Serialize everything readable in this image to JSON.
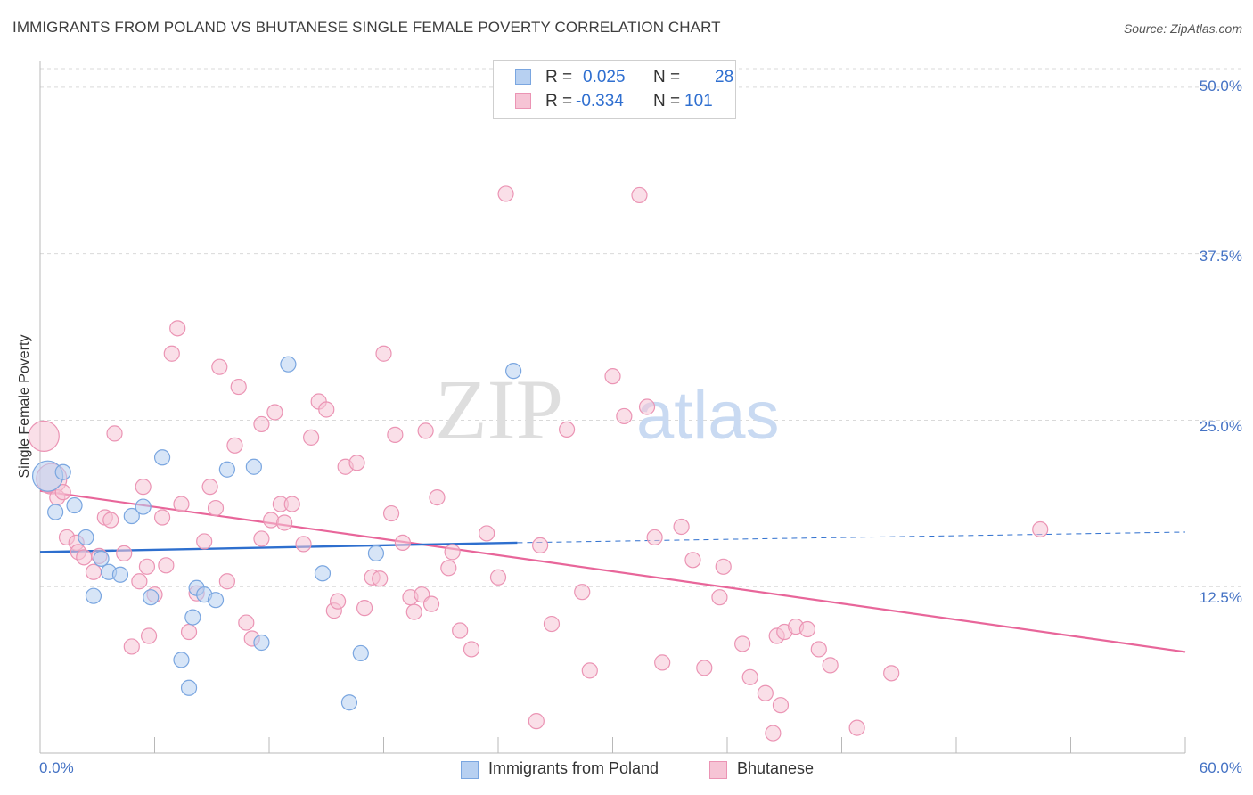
{
  "title": "IMMIGRANTS FROM POLAND VS BHUTANESE SINGLE FEMALE POVERTY CORRELATION CHART",
  "source": "Source: ZipAtlas.com",
  "watermark": {
    "zip": "ZIP",
    "atlas": "atlas"
  },
  "colors": {
    "blue_fill": "#b7d0f1",
    "blue_stroke": "#7aa6e0",
    "blue_line": "#2e6fce",
    "pink_fill": "#f6c4d5",
    "pink_stroke": "#eb94b4",
    "pink_line": "#e8669a",
    "axis_text": "#4472c4",
    "grid": "#d9d9d9"
  },
  "legend": {
    "rows": [
      {
        "r_label": "R =",
        "r_value": "0.025",
        "n_label": "N =",
        "n_value": "28"
      },
      {
        "r_label": "R =",
        "r_value": "-0.334",
        "n_label": "N =",
        "n_value": "101"
      }
    ]
  },
  "bottom_legend": [
    "Immigrants from Poland",
    "Bhutanese"
  ],
  "chart_data": {
    "type": "scatter",
    "title": "IMMIGRANTS FROM POLAND VS BHUTANESE SINGLE FEMALE POVERTY CORRELATION CHART",
    "xlabel": "",
    "ylabel": "Single Female Poverty",
    "xlim": [
      0,
      60
    ],
    "ylim": [
      0,
      52
    ],
    "x_tick_labels": [
      "0.0%",
      "60.0%"
    ],
    "y_ticks": [
      12.5,
      25.0,
      37.5,
      50.0
    ],
    "y_tick_labels": [
      "12.5%",
      "25.0%",
      "37.5%",
      "50.0%"
    ],
    "grid": true,
    "legend_position": "top-center",
    "series": [
      {
        "name": "Immigrants from Poland",
        "color": "#7aa6e0",
        "r": 0.025,
        "n": 28,
        "trend": {
          "x": [
            0,
            25
          ],
          "y": [
            15.1,
            15.8
          ],
          "dashed_to": [
            60,
            16.6
          ]
        },
        "points": [
          {
            "x": 0.4,
            "y": 20.8,
            "big": true
          },
          {
            "x": 1.2,
            "y": 21.1
          },
          {
            "x": 0.8,
            "y": 18.1
          },
          {
            "x": 1.8,
            "y": 18.6
          },
          {
            "x": 2.4,
            "y": 16.2
          },
          {
            "x": 3.2,
            "y": 14.6
          },
          {
            "x": 3.6,
            "y": 13.6
          },
          {
            "x": 4.2,
            "y": 13.4
          },
          {
            "x": 2.8,
            "y": 11.8
          },
          {
            "x": 4.8,
            "y": 17.8
          },
          {
            "x": 5.4,
            "y": 18.5
          },
          {
            "x": 5.8,
            "y": 11.7
          },
          {
            "x": 6.4,
            "y": 22.2
          },
          {
            "x": 7.4,
            "y": 7.0
          },
          {
            "x": 7.8,
            "y": 4.9
          },
          {
            "x": 8.0,
            "y": 10.2
          },
          {
            "x": 8.2,
            "y": 12.4
          },
          {
            "x": 8.6,
            "y": 11.9
          },
          {
            "x": 9.2,
            "y": 11.5
          },
          {
            "x": 9.8,
            "y": 21.3
          },
          {
            "x": 11.2,
            "y": 21.5
          },
          {
            "x": 11.6,
            "y": 8.3
          },
          {
            "x": 13.0,
            "y": 29.2
          },
          {
            "x": 14.8,
            "y": 13.5
          },
          {
            "x": 16.2,
            "y": 3.8
          },
          {
            "x": 16.8,
            "y": 7.5
          },
          {
            "x": 17.6,
            "y": 15.0
          },
          {
            "x": 24.8,
            "y": 28.7
          }
        ]
      },
      {
        "name": "Bhutanese",
        "color": "#eb94b4",
        "r": -0.334,
        "n": 101,
        "trend": {
          "x": [
            0,
            60
          ],
          "y": [
            19.7,
            7.6
          ]
        },
        "points": [
          {
            "x": 0.2,
            "y": 23.8,
            "big": true
          },
          {
            "x": 0.6,
            "y": 20.6,
            "big": true
          },
          {
            "x": 0.9,
            "y": 19.2
          },
          {
            "x": 1.2,
            "y": 19.6
          },
          {
            "x": 1.4,
            "y": 16.2
          },
          {
            "x": 1.9,
            "y": 15.8
          },
          {
            "x": 2.0,
            "y": 15.1
          },
          {
            "x": 2.3,
            "y": 14.7
          },
          {
            "x": 2.8,
            "y": 13.6
          },
          {
            "x": 3.1,
            "y": 14.8
          },
          {
            "x": 3.4,
            "y": 17.7
          },
          {
            "x": 3.7,
            "y": 17.5
          },
          {
            "x": 3.9,
            "y": 24.0
          },
          {
            "x": 4.4,
            "y": 15.0
          },
          {
            "x": 4.8,
            "y": 8.0
          },
          {
            "x": 5.2,
            "y": 12.9
          },
          {
            "x": 5.4,
            "y": 20.0
          },
          {
            "x": 5.6,
            "y": 14.0
          },
          {
            "x": 5.7,
            "y": 8.8
          },
          {
            "x": 6.0,
            "y": 11.9
          },
          {
            "x": 6.4,
            "y": 17.7
          },
          {
            "x": 6.6,
            "y": 14.1
          },
          {
            "x": 6.9,
            "y": 30.0
          },
          {
            "x": 7.2,
            "y": 31.9
          },
          {
            "x": 7.4,
            "y": 18.7
          },
          {
            "x": 7.8,
            "y": 9.1
          },
          {
            "x": 8.2,
            "y": 12.0
          },
          {
            "x": 8.6,
            "y": 15.9
          },
          {
            "x": 8.9,
            "y": 20.0
          },
          {
            "x": 9.2,
            "y": 18.4
          },
          {
            "x": 9.4,
            "y": 29.0
          },
          {
            "x": 9.8,
            "y": 12.9
          },
          {
            "x": 10.2,
            "y": 23.1
          },
          {
            "x": 10.4,
            "y": 27.5
          },
          {
            "x": 10.8,
            "y": 9.8
          },
          {
            "x": 11.1,
            "y": 8.6
          },
          {
            "x": 11.6,
            "y": 16.1
          },
          {
            "x": 11.6,
            "y": 24.7
          },
          {
            "x": 12.1,
            "y": 17.5
          },
          {
            "x": 12.3,
            "y": 25.6
          },
          {
            "x": 12.6,
            "y": 18.7
          },
          {
            "x": 12.8,
            "y": 17.3
          },
          {
            "x": 13.2,
            "y": 18.7
          },
          {
            "x": 13.8,
            "y": 15.7
          },
          {
            "x": 14.2,
            "y": 23.7
          },
          {
            "x": 14.6,
            "y": 26.4
          },
          {
            "x": 15.0,
            "y": 25.8
          },
          {
            "x": 15.4,
            "y": 10.7
          },
          {
            "x": 15.6,
            "y": 11.4
          },
          {
            "x": 16.0,
            "y": 21.5
          },
          {
            "x": 16.6,
            "y": 21.8
          },
          {
            "x": 17.0,
            "y": 10.9
          },
          {
            "x": 17.4,
            "y": 13.2
          },
          {
            "x": 17.8,
            "y": 13.1
          },
          {
            "x": 18.0,
            "y": 30.0
          },
          {
            "x": 18.4,
            "y": 18.0
          },
          {
            "x": 18.6,
            "y": 23.9
          },
          {
            "x": 19.0,
            "y": 15.8
          },
          {
            "x": 19.4,
            "y": 11.7
          },
          {
            "x": 19.6,
            "y": 10.6
          },
          {
            "x": 20.0,
            "y": 11.9
          },
          {
            "x": 20.2,
            "y": 24.2
          },
          {
            "x": 20.5,
            "y": 11.2
          },
          {
            "x": 20.8,
            "y": 19.2
          },
          {
            "x": 21.4,
            "y": 13.9
          },
          {
            "x": 21.6,
            "y": 15.1
          },
          {
            "x": 22.0,
            "y": 9.2
          },
          {
            "x": 22.6,
            "y": 7.8
          },
          {
            "x": 23.4,
            "y": 16.5
          },
          {
            "x": 24.0,
            "y": 13.2
          },
          {
            "x": 24.4,
            "y": 42.0
          },
          {
            "x": 26.0,
            "y": 2.4
          },
          {
            "x": 26.2,
            "y": 15.6
          },
          {
            "x": 26.8,
            "y": 9.7
          },
          {
            "x": 27.6,
            "y": 24.3
          },
          {
            "x": 28.4,
            "y": 12.1
          },
          {
            "x": 28.8,
            "y": 6.2
          },
          {
            "x": 30.0,
            "y": 28.3
          },
          {
            "x": 30.6,
            "y": 25.3
          },
          {
            "x": 31.4,
            "y": 41.9
          },
          {
            "x": 31.8,
            "y": 26.0
          },
          {
            "x": 32.2,
            "y": 16.2
          },
          {
            "x": 32.6,
            "y": 6.8
          },
          {
            "x": 33.6,
            "y": 17.0
          },
          {
            "x": 34.2,
            "y": 14.5
          },
          {
            "x": 34.8,
            "y": 6.4
          },
          {
            "x": 35.6,
            "y": 11.7
          },
          {
            "x": 35.8,
            "y": 14.0
          },
          {
            "x": 36.8,
            "y": 8.2
          },
          {
            "x": 37.2,
            "y": 5.7
          },
          {
            "x": 38.0,
            "y": 4.5
          },
          {
            "x": 38.4,
            "y": 1.5
          },
          {
            "x": 38.6,
            "y": 8.8
          },
          {
            "x": 38.8,
            "y": 3.6
          },
          {
            "x": 39.0,
            "y": 9.1
          },
          {
            "x": 39.6,
            "y": 9.5
          },
          {
            "x": 40.2,
            "y": 9.3
          },
          {
            "x": 40.8,
            "y": 7.8
          },
          {
            "x": 41.4,
            "y": 6.6
          },
          {
            "x": 42.8,
            "y": 1.9
          },
          {
            "x": 44.6,
            "y": 6.0
          },
          {
            "x": 52.4,
            "y": 16.8
          }
        ]
      }
    ]
  }
}
